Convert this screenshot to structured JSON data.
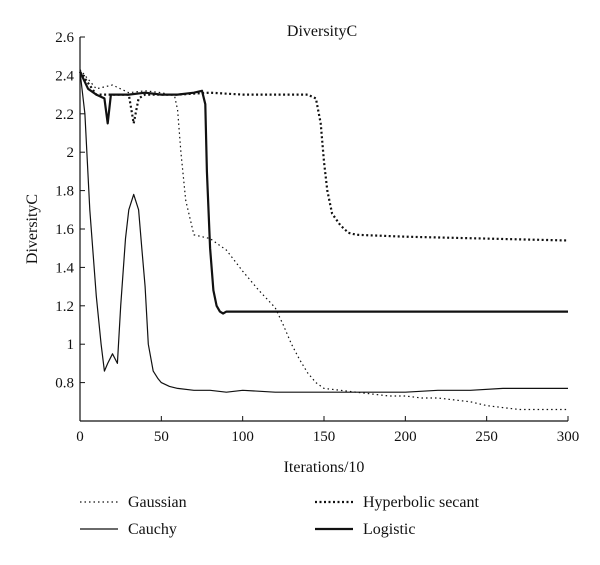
{
  "chart_data": {
    "type": "line",
    "title": "DiversityC",
    "xlabel": "Iterations/10",
    "ylabel": "DiversityC",
    "xlim": [
      0,
      300
    ],
    "ylim": [
      0.6,
      2.6
    ],
    "xticks": [
      0,
      50,
      100,
      150,
      200,
      250,
      300
    ],
    "yticks": [
      0.8,
      1,
      1.2,
      1.4,
      1.6,
      1.8,
      2,
      2.2,
      2.4,
      2.6
    ],
    "ytick_labels": [
      "0.8",
      "1",
      "1.2",
      "1.4",
      "1.6",
      "1.8",
      "2",
      "2.2",
      "2.4",
      "2.6"
    ],
    "grid": false,
    "legend_position": "bottom",
    "series": [
      {
        "name": "Gaussian",
        "style": "dotted-thin",
        "x": [
          0,
          10,
          20,
          30,
          40,
          50,
          55,
          58,
          60,
          62,
          65,
          70,
          80,
          90,
          100,
          110,
          120,
          125,
          130,
          135,
          140,
          145,
          150,
          160,
          170,
          180,
          190,
          200,
          210,
          220,
          230,
          240,
          250,
          260,
          270,
          280,
          290,
          300
        ],
        "y": [
          2.43,
          2.33,
          2.35,
          2.31,
          2.32,
          2.31,
          2.3,
          2.3,
          2.22,
          2.0,
          1.75,
          1.57,
          1.55,
          1.49,
          1.38,
          1.28,
          1.19,
          1.1,
          1.0,
          0.92,
          0.85,
          0.8,
          0.77,
          0.76,
          0.75,
          0.74,
          0.73,
          0.73,
          0.72,
          0.72,
          0.71,
          0.7,
          0.68,
          0.67,
          0.66,
          0.66,
          0.66,
          0.66
        ]
      },
      {
        "name": "Cauchy",
        "style": "solid-thin",
        "x": [
          0,
          3,
          6,
          10,
          13,
          15,
          17,
          20,
          23,
          25,
          28,
          30,
          33,
          36,
          38,
          40,
          42,
          45,
          48,
          50,
          55,
          60,
          70,
          80,
          90,
          100,
          120,
          140,
          160,
          180,
          200,
          220,
          240,
          260,
          280,
          300
        ],
        "y": [
          2.42,
          2.2,
          1.7,
          1.25,
          1.0,
          0.86,
          0.9,
          0.95,
          0.9,
          1.2,
          1.55,
          1.7,
          1.78,
          1.7,
          1.5,
          1.3,
          1.0,
          0.86,
          0.82,
          0.8,
          0.78,
          0.77,
          0.76,
          0.76,
          0.75,
          0.76,
          0.75,
          0.75,
          0.75,
          0.75,
          0.75,
          0.76,
          0.76,
          0.77,
          0.77,
          0.77
        ]
      },
      {
        "name": "Hyperbolic secant",
        "style": "dotted-thick",
        "x": [
          0,
          10,
          20,
          30,
          33,
          36,
          40,
          60,
          80,
          100,
          120,
          140,
          145,
          148,
          150,
          152,
          155,
          160,
          165,
          170,
          200,
          250,
          300
        ],
        "y": [
          2.42,
          2.3,
          2.3,
          2.3,
          2.15,
          2.28,
          2.3,
          2.3,
          2.31,
          2.3,
          2.3,
          2.3,
          2.28,
          2.15,
          1.95,
          1.8,
          1.68,
          1.62,
          1.58,
          1.57,
          1.56,
          1.55,
          1.54
        ]
      },
      {
        "name": "Logistic",
        "style": "solid-thick",
        "x": [
          0,
          5,
          10,
          15,
          17,
          19,
          22,
          30,
          40,
          50,
          60,
          70,
          75,
          77,
          78,
          80,
          82,
          84,
          86,
          88,
          90,
          100,
          150,
          200,
          250,
          300
        ],
        "y": [
          2.42,
          2.33,
          2.3,
          2.28,
          2.15,
          2.3,
          2.3,
          2.3,
          2.31,
          2.3,
          2.3,
          2.31,
          2.32,
          2.25,
          1.9,
          1.5,
          1.28,
          1.2,
          1.17,
          1.16,
          1.17,
          1.17,
          1.17,
          1.17,
          1.17,
          1.17
        ]
      }
    ]
  }
}
